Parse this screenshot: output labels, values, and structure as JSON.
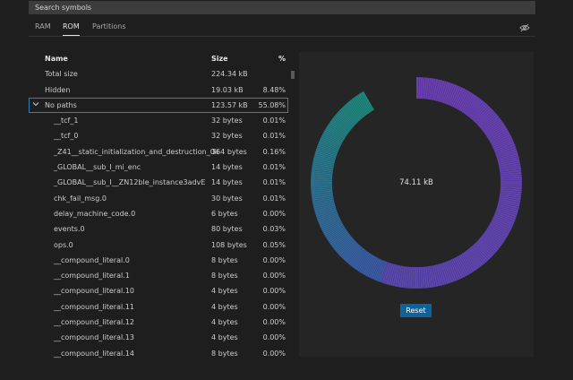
{
  "search": {
    "placeholder": "Search symbols"
  },
  "tabs": [
    {
      "label": "RAM",
      "active": false
    },
    {
      "label": "ROM",
      "active": true
    },
    {
      "label": "Partitions",
      "active": false
    }
  ],
  "toolbar": {
    "visibility_icon": "eye-off-icon"
  },
  "table": {
    "columns": {
      "name": "Name",
      "size": "Size",
      "percent": "%"
    },
    "rows": [
      {
        "name": "Total size",
        "size": "224.34 kB",
        "percent": ""
      },
      {
        "name": "Hidden",
        "size": "19.03 kB",
        "percent": "8.48%"
      },
      {
        "name": "No paths",
        "size": "123.57 kB",
        "percent": "55.08%",
        "expanded": true,
        "selected": true
      },
      {
        "name": "__tcf_1",
        "size": "32 bytes",
        "percent": "0.01%"
      },
      {
        "name": "__tcf_0",
        "size": "32 bytes",
        "percent": "0.01%"
      },
      {
        "name": "_Z41__static_initialization_and_destruction_0ii",
        "size": "364 bytes",
        "percent": "0.16%"
      },
      {
        "name": "_GLOBAL__sub_I_mi_enc",
        "size": "14 bytes",
        "percent": "0.01%"
      },
      {
        "name": "_GLOBAL__sub_I__ZN12ble_instance3advE",
        "size": "14 bytes",
        "percent": "0.01%"
      },
      {
        "name": "chk_fail_msg.0",
        "size": "30 bytes",
        "percent": "0.01%"
      },
      {
        "name": "delay_machine_code.0",
        "size": "6 bytes",
        "percent": "0.00%"
      },
      {
        "name": "events.0",
        "size": "80 bytes",
        "percent": "0.03%"
      },
      {
        "name": "ops.0",
        "size": "108 bytes",
        "percent": "0.05%"
      },
      {
        "name": "__compound_literal.0",
        "size": "8 bytes",
        "percent": "0.00%"
      },
      {
        "name": "__compound_literal.1",
        "size": "8 bytes",
        "percent": "0.00%"
      },
      {
        "name": "__compound_literal.10",
        "size": "4 bytes",
        "percent": "0.00%"
      },
      {
        "name": "__compound_literal.11",
        "size": "4 bytes",
        "percent": "0.00%"
      },
      {
        "name": "__compound_literal.12",
        "size": "4 bytes",
        "percent": "0.00%"
      },
      {
        "name": "__compound_literal.13",
        "size": "4 bytes",
        "percent": "0.00%"
      },
      {
        "name": "__compound_literal.14",
        "size": "8 bytes",
        "percent": "0.00%"
      }
    ]
  },
  "donut": {
    "center_label": "74.11 kB",
    "colors": {
      "main": "#6a3fb0",
      "gradient_start": "#1f8a7c",
      "gradient_end": "#3d5aa8"
    }
  },
  "reset_label": "Reset"
}
